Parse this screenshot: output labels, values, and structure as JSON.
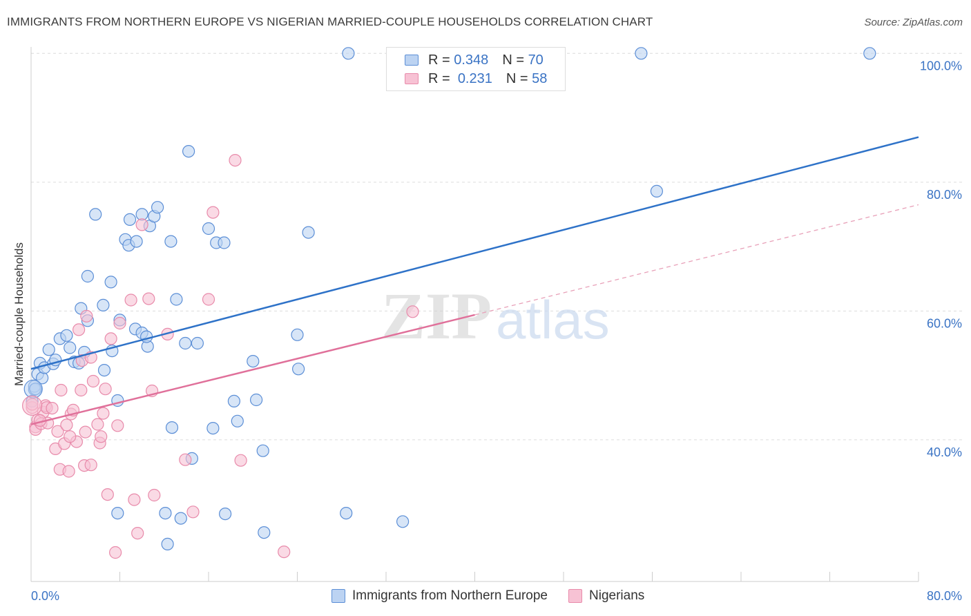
{
  "chart_data": {
    "type": "scatter",
    "title": "IMMIGRANTS FROM NORTHERN EUROPE VS NIGERIAN MARRIED-COUPLE HOUSEHOLDS CORRELATION CHART",
    "source": "Source: ZipAtlas.com",
    "ylabel": "Married-couple Households",
    "xlabel": "",
    "xlim": [
      0,
      80
    ],
    "ylim": [
      18,
      104
    ],
    "x_tick_labels": {
      "min": "0.0%",
      "max": "80.0%"
    },
    "y_ticks": [
      {
        "value": 40,
        "label": "40.0%"
      },
      {
        "value": 60,
        "label": "60.0%"
      },
      {
        "value": 80,
        "label": "80.0%"
      },
      {
        "value": 100,
        "label": "100.0%"
      }
    ],
    "watermark": {
      "zip": "ZIP",
      "atlas": "atlas"
    },
    "legend": {
      "r_label": "R =",
      "n_label": "N =",
      "entries": [
        {
          "r": "0.348",
          "n": "70"
        },
        {
          "r": "0.231",
          "n": "58"
        }
      ]
    },
    "series": [
      {
        "name": "Immigrants from Northern Europe",
        "color": "#5b8ed6",
        "fill": "#bcd3f2",
        "trend": {
          "x": [
            0,
            80
          ],
          "y": [
            51.0,
            87.0
          ],
          "style": "solid"
        },
        "points": [
          [
            0.3,
            47.8
          ],
          [
            0.3,
            48.3
          ],
          [
            0.6,
            50.2
          ],
          [
            0.8,
            51.9
          ],
          [
            1.0,
            49.6
          ],
          [
            1.2,
            51.2
          ],
          [
            1.6,
            54.0
          ],
          [
            2.0,
            51.8
          ],
          [
            2.6,
            55.7
          ],
          [
            3.2,
            56.2
          ],
          [
            3.5,
            54.3
          ],
          [
            3.9,
            52.1
          ],
          [
            4.3,
            51.9
          ],
          [
            4.8,
            53.6
          ],
          [
            4.5,
            60.4
          ],
          [
            5.1,
            58.5
          ],
          [
            5.1,
            65.4
          ],
          [
            5.8,
            75.0
          ],
          [
            6.5,
            60.9
          ],
          [
            6.6,
            50.8
          ],
          [
            7.2,
            64.5
          ],
          [
            7.3,
            53.8
          ],
          [
            8.0,
            58.6
          ],
          [
            7.8,
            46.1
          ],
          [
            8.5,
            71.1
          ],
          [
            8.8,
            70.2
          ],
          [
            8.9,
            74.2
          ],
          [
            9.5,
            70.8
          ],
          [
            9.4,
            57.2
          ],
          [
            10.0,
            56.6
          ],
          [
            10.0,
            75.0
          ],
          [
            10.5,
            54.5
          ],
          [
            10.4,
            56.0
          ],
          [
            10.7,
            73.2
          ],
          [
            11.1,
            74.7
          ],
          [
            11.4,
            76.1
          ],
          [
            12.6,
            70.8
          ],
          [
            12.7,
            41.9
          ],
          [
            13.1,
            61.8
          ],
          [
            13.9,
            55.0
          ],
          [
            14.2,
            84.8
          ],
          [
            14.5,
            37.1
          ],
          [
            15.0,
            55.0
          ],
          [
            16.0,
            72.8
          ],
          [
            16.4,
            41.8
          ],
          [
            16.7,
            70.6
          ],
          [
            17.4,
            70.6
          ],
          [
            17.5,
            28.5
          ],
          [
            18.3,
            46.0
          ],
          [
            18.6,
            42.9
          ],
          [
            20.0,
            52.2
          ],
          [
            20.3,
            46.2
          ],
          [
            20.9,
            38.3
          ],
          [
            21.0,
            25.6
          ],
          [
            24.0,
            56.3
          ],
          [
            24.1,
            51.0
          ],
          [
            25.0,
            72.2
          ],
          [
            28.4,
            28.6
          ],
          [
            28.6,
            100.0
          ],
          [
            33.5,
            27.3
          ],
          [
            55.0,
            100.0
          ],
          [
            56.4,
            78.6
          ],
          [
            75.6,
            100.0
          ],
          [
            7.8,
            28.6
          ],
          [
            12.1,
            28.6
          ],
          [
            12.3,
            23.8
          ],
          [
            13.5,
            27.8
          ],
          [
            0.4,
            47.9
          ],
          [
            0.1,
            46.0
          ],
          [
            2.2,
            52.4
          ]
        ]
      },
      {
        "name": "Nigerians",
        "color": "#e88aaa",
        "fill": "#f7c2d4",
        "trend": {
          "x": [
            0,
            40
          ],
          "y": [
            42.4,
            59.4
          ],
          "style": "solid"
        },
        "trend_ext": {
          "x": [
            40,
            80
          ],
          "y": [
            59.4,
            76.5
          ],
          "style": "dashed"
        },
        "points": [
          [
            0.1,
            45.0
          ],
          [
            0.1,
            45.5
          ],
          [
            0.4,
            42.0
          ],
          [
            0.4,
            41.6
          ],
          [
            0.6,
            43.1
          ],
          [
            0.9,
            42.5
          ],
          [
            1.1,
            44.3
          ],
          [
            1.3,
            45.3
          ],
          [
            1.4,
            45.0
          ],
          [
            1.5,
            42.6
          ],
          [
            1.9,
            44.9
          ],
          [
            2.2,
            38.6
          ],
          [
            2.4,
            41.3
          ],
          [
            2.6,
            35.4
          ],
          [
            2.7,
            47.7
          ],
          [
            3.0,
            39.4
          ],
          [
            3.2,
            42.3
          ],
          [
            3.4,
            35.1
          ],
          [
            3.6,
            44.0
          ],
          [
            3.8,
            44.6
          ],
          [
            4.1,
            39.7
          ],
          [
            4.3,
            57.1
          ],
          [
            4.5,
            47.7
          ],
          [
            4.6,
            52.3
          ],
          [
            4.8,
            36.0
          ],
          [
            4.9,
            41.2
          ],
          [
            5.0,
            59.2
          ],
          [
            5.4,
            52.8
          ],
          [
            5.4,
            36.1
          ],
          [
            5.6,
            49.1
          ],
          [
            6.0,
            42.4
          ],
          [
            6.2,
            39.5
          ],
          [
            6.3,
            40.5
          ],
          [
            6.5,
            44.1
          ],
          [
            6.7,
            47.9
          ],
          [
            6.9,
            31.5
          ],
          [
            7.2,
            55.7
          ],
          [
            7.6,
            22.5
          ],
          [
            7.8,
            42.2
          ],
          [
            8.0,
            58.1
          ],
          [
            9.0,
            61.7
          ],
          [
            9.3,
            30.7
          ],
          [
            9.6,
            25.5
          ],
          [
            10.0,
            73.4
          ],
          [
            10.6,
            61.9
          ],
          [
            10.9,
            47.6
          ],
          [
            11.1,
            31.4
          ],
          [
            12.3,
            56.4
          ],
          [
            13.9,
            36.9
          ],
          [
            14.6,
            28.8
          ],
          [
            16.0,
            61.8
          ],
          [
            16.4,
            75.3
          ],
          [
            18.4,
            83.4
          ],
          [
            18.9,
            36.8
          ],
          [
            22.8,
            22.6
          ],
          [
            34.4,
            59.9
          ],
          [
            0.8,
            43.0
          ],
          [
            3.5,
            40.5
          ]
        ]
      }
    ]
  }
}
